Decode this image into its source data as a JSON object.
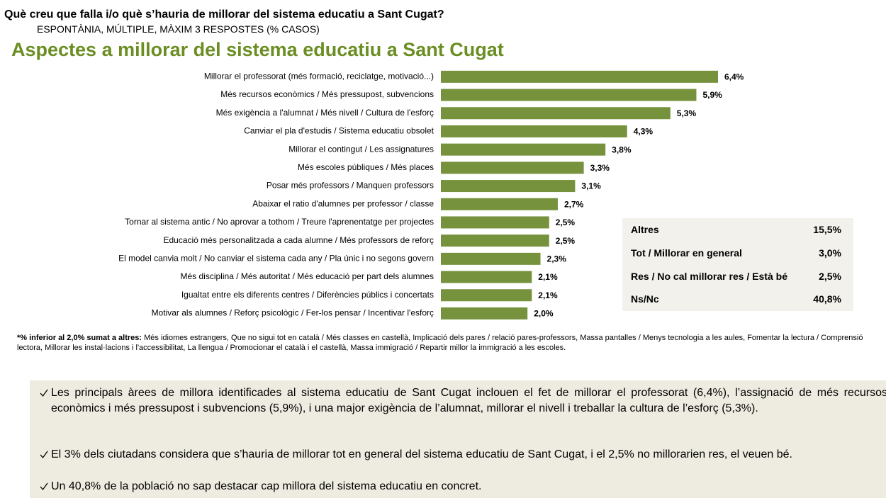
{
  "header": {
    "title": "Què creu que falla i/o què s’hauria de millorar del sistema educatiu a Sant Cugat?",
    "subtitle": "ESPONTÀNIA, MÚLTIPLE, MÀXIM 3 RESPOSTES (% CASOS)"
  },
  "chart_data": {
    "type": "bar",
    "orientation": "horizontal",
    "title": "Aspectes a millorar del sistema educatiu a Sant Cugat",
    "categories": [
      "Millorar el professorat (més formació, reciclatge, motivació...)",
      "Més recursos econòmics / Més pressupost, subvencions",
      "Més exigència a l'alumnat / Més nivell / Cultura de l'esforç",
      "Canviar el pla d'estudis / Sistema educatiu obsolet",
      "Millorar el contingut / Les assignatures",
      "Més escoles públiques / Més places",
      "Posar més professors / Manquen professors",
      "Abaixar el ratio d'alumnes per professor / classe",
      "Tornar al sistema antic / No aprovar a tothom / Treure l'aprenentatge per projectes",
      "Educació més personalitzada a cada alumne / Més professors de reforç",
      "El model canvia molt / No canviar el sistema cada any / Pla únic i no segons govern",
      "Més disciplina / Més autoritat / Més educació per part dels alumnes",
      "Igualtat entre els diferents centres / Diferències públics i concertats",
      "Motivar als alumnes / Reforç psicològic / Fer-los pensar / Incentivar l'esforç"
    ],
    "values": [
      6.4,
      5.9,
      5.3,
      4.3,
      3.8,
      3.3,
      3.1,
      2.7,
      2.5,
      2.5,
      2.3,
      2.1,
      2.1,
      2.0
    ],
    "value_labels": [
      "6,4%",
      "5,9%",
      "5,3%",
      "4,3%",
      "3,8%",
      "3,3%",
      "3,1%",
      "2,7%",
      "2,5%",
      "2,5%",
      "2,3%",
      "2,1%",
      "2,1%",
      "2,0%"
    ],
    "color": "#76923c"
  },
  "side_table": {
    "rows": [
      [
        "Altres",
        "15,5%"
      ],
      [
        "Tot / Millorar en general",
        "3,0%"
      ],
      [
        "Res / No cal millorar res / Està bé",
        "2,5%"
      ],
      [
        "Ns/Nc",
        "40,8%"
      ]
    ]
  },
  "footnote": {
    "lead": "*% inferior al 2,0% sumat a altres:",
    "text": "Més idiomes estrangers, Que no sigui tot en català / Més classes en castellà, Implicació dels pares / relació pares-professors, Massa pantalles / Menys tecnologia a les aules, Fomentar la lectura / Comprensió lectora, Millorar les instal·lacions i l'accessibilitat, La llengua / Promocionar el català i el castellà, Massa immigració / Repartir millor la  immigració a les escoles."
  },
  "conclusions": [
    "Les principals àrees de millora identificades al sistema educatiu de Sant Cugat inclouen el fet de millorar el professorat (6,4%), l’assignació de més recursos econòmics i més pressupost i subvencions (5,9%), i una major exigència de l’alumnat, millorar el nivell i treballar la cultura de l’esforç (5,3%).",
    "El 3% dels ciutadans considera que s’hauria de millorar tot en general del sistema educatiu de Sant Cugat, i el 2,5% no millorarien res, el veuen bé.",
    "Un 40,8% de la població no sap destacar cap millora del sistema educatiu en concret."
  ]
}
